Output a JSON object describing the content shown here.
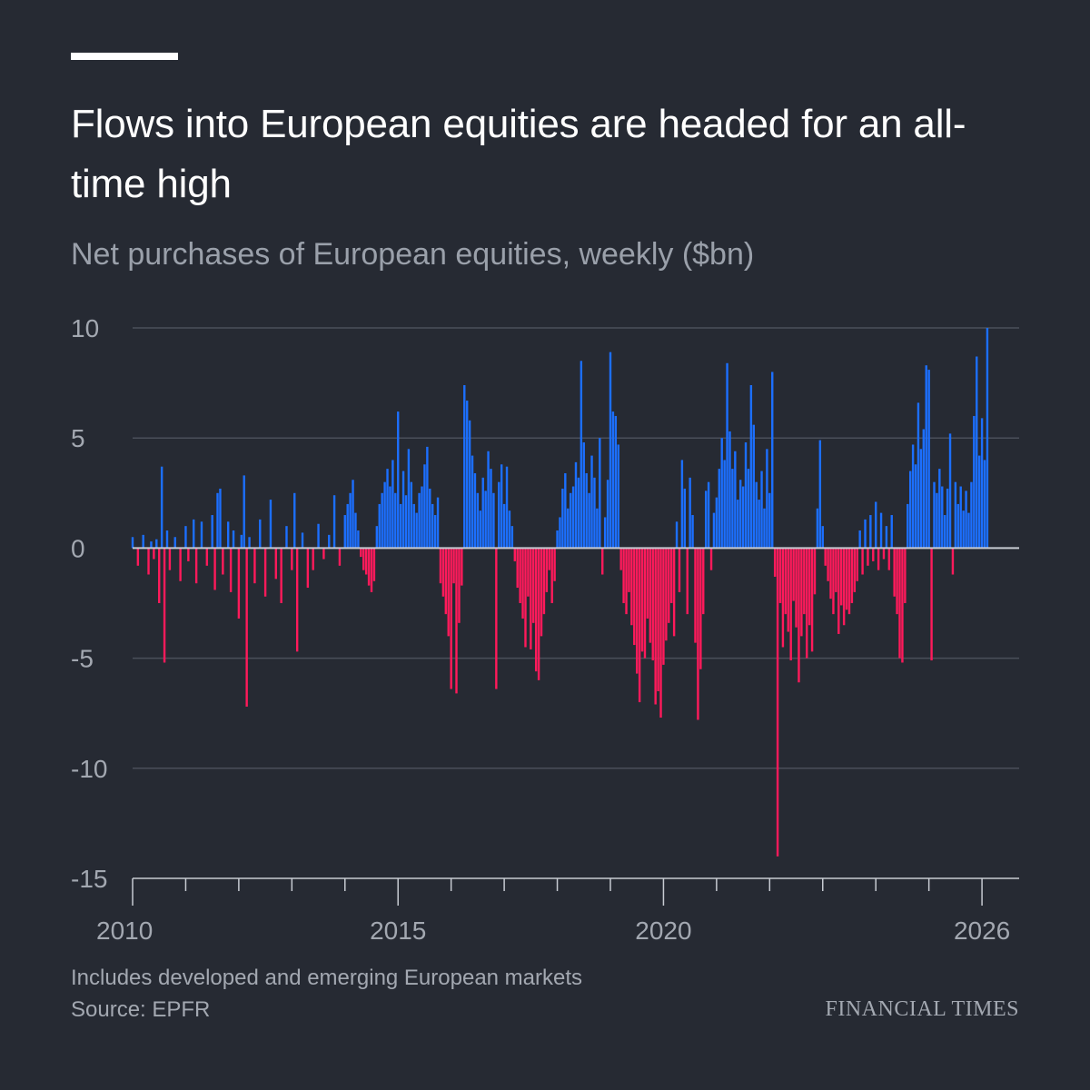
{
  "header": {
    "title": "Flows into European equities are headed for an all-time high",
    "subtitle": "Net purchases of European equities, weekly ($bn)"
  },
  "footer": {
    "note": "Includes developed and emerging European markets",
    "source": "Source: EPFR",
    "brand": "FINANCIAL TIMES"
  },
  "colors": {
    "background": "#262a33",
    "positive": "#1c6fff",
    "negative": "#ff1a5b",
    "gridline": "#4a4f5a",
    "text_muted": "#a3a8b1"
  },
  "chart_data": {
    "type": "bar",
    "title": "Flows into European equities are headed for an all-time high",
    "subtitle": "Net purchases of European equities, weekly ($bn)",
    "xlabel": "",
    "ylabel": "",
    "ylim": [
      -15,
      10
    ],
    "xlim": [
      2010,
      2026.7
    ],
    "y_ticks": [
      10,
      5,
      0,
      -5,
      -10,
      -15
    ],
    "x_tick_labels": [
      "2010",
      "2015",
      "2020",
      "2026"
    ],
    "x_tick_values": [
      2010,
      2015,
      2020,
      2026
    ],
    "x_minor_ticks": [
      2011,
      2012,
      2013,
      2014,
      2016,
      2017,
      2018,
      2019,
      2021,
      2022,
      2023,
      2024,
      2025
    ],
    "grid": true,
    "series": [
      {
        "x_unit": "year (weekly observations)",
        "points": [
          [
            2010.0,
            0.5
          ],
          [
            2010.1,
            -0.8
          ],
          [
            2010.2,
            0.6
          ],
          [
            2010.3,
            -1.2
          ],
          [
            2010.35,
            0.3
          ],
          [
            2010.4,
            -0.5
          ],
          [
            2010.45,
            0.4
          ],
          [
            2010.5,
            -2.5
          ],
          [
            2010.55,
            3.7
          ],
          [
            2010.6,
            -5.2
          ],
          [
            2010.65,
            0.8
          ],
          [
            2010.7,
            -1.0
          ],
          [
            2010.8,
            0.5
          ],
          [
            2010.9,
            -1.5
          ],
          [
            2011.0,
            1.0
          ],
          [
            2011.05,
            -0.6
          ],
          [
            2011.15,
            1.3
          ],
          [
            2011.2,
            -1.6
          ],
          [
            2011.3,
            1.2
          ],
          [
            2011.4,
            -0.8
          ],
          [
            2011.5,
            1.5
          ],
          [
            2011.55,
            -1.9
          ],
          [
            2011.6,
            2.5
          ],
          [
            2011.65,
            2.7
          ],
          [
            2011.7,
            -1.2
          ],
          [
            2011.8,
            1.2
          ],
          [
            2011.85,
            -2.0
          ],
          [
            2011.9,
            0.8
          ],
          [
            2012.0,
            -3.2
          ],
          [
            2012.05,
            0.6
          ],
          [
            2012.1,
            3.3
          ],
          [
            2012.15,
            -7.2
          ],
          [
            2012.2,
            0.5
          ],
          [
            2012.3,
            -1.6
          ],
          [
            2012.4,
            1.3
          ],
          [
            2012.5,
            -2.2
          ],
          [
            2012.6,
            2.2
          ],
          [
            2012.7,
            -1.4
          ],
          [
            2012.8,
            -2.5
          ],
          [
            2012.9,
            1.0
          ],
          [
            2013.0,
            -1.0
          ],
          [
            2013.05,
            2.5
          ],
          [
            2013.1,
            -4.7
          ],
          [
            2013.2,
            0.7
          ],
          [
            2013.3,
            -1.8
          ],
          [
            2013.4,
            -1.0
          ],
          [
            2013.5,
            1.1
          ],
          [
            2013.6,
            -0.5
          ],
          [
            2013.7,
            0.6
          ],
          [
            2013.8,
            2.4
          ],
          [
            2013.9,
            -0.8
          ],
          [
            2014.0,
            1.5
          ],
          [
            2014.05,
            2.0
          ],
          [
            2014.1,
            2.5
          ],
          [
            2014.15,
            3.1
          ],
          [
            2014.2,
            1.6
          ],
          [
            2014.25,
            0.8
          ],
          [
            2014.3,
            -0.4
          ],
          [
            2014.35,
            -1.0
          ],
          [
            2014.4,
            -1.2
          ],
          [
            2014.45,
            -1.7
          ],
          [
            2014.5,
            -2.0
          ],
          [
            2014.55,
            -1.5
          ],
          [
            2014.6,
            1.0
          ],
          [
            2014.65,
            2.0
          ],
          [
            2014.7,
            2.5
          ],
          [
            2014.75,
            3.0
          ],
          [
            2014.8,
            3.6
          ],
          [
            2014.85,
            2.8
          ],
          [
            2014.9,
            4.0
          ],
          [
            2014.95,
            2.5
          ],
          [
            2015.0,
            6.2
          ],
          [
            2015.05,
            2.0
          ],
          [
            2015.1,
            3.5
          ],
          [
            2015.15,
            2.4
          ],
          [
            2015.2,
            4.5
          ],
          [
            2015.25,
            3.0
          ],
          [
            2015.3,
            2.0
          ],
          [
            2015.35,
            1.6
          ],
          [
            2015.4,
            2.5
          ],
          [
            2015.45,
            2.8
          ],
          [
            2015.5,
            3.8
          ],
          [
            2015.55,
            4.6
          ],
          [
            2015.6,
            2.7
          ],
          [
            2015.65,
            2.0
          ],
          [
            2015.7,
            1.5
          ],
          [
            2015.75,
            2.3
          ],
          [
            2015.8,
            -1.6
          ],
          [
            2015.85,
            -2.2
          ],
          [
            2015.9,
            -3.0
          ],
          [
            2015.95,
            -4.0
          ],
          [
            2016.0,
            -6.4
          ],
          [
            2016.05,
            -1.6
          ],
          [
            2016.1,
            -6.6
          ],
          [
            2016.15,
            -3.4
          ],
          [
            2016.2,
            -1.7
          ],
          [
            2016.25,
            7.4
          ],
          [
            2016.3,
            6.7
          ],
          [
            2016.35,
            5.8
          ],
          [
            2016.4,
            4.2
          ],
          [
            2016.45,
            3.4
          ],
          [
            2016.5,
            2.5
          ],
          [
            2016.55,
            1.7
          ],
          [
            2016.6,
            3.2
          ],
          [
            2016.65,
            2.6
          ],
          [
            2016.7,
            4.4
          ],
          [
            2016.75,
            3.6
          ],
          [
            2016.8,
            2.5
          ],
          [
            2016.85,
            -6.4
          ],
          [
            2016.9,
            3.0
          ],
          [
            2016.95,
            3.8
          ],
          [
            2017.0,
            2.0
          ],
          [
            2017.05,
            3.7
          ],
          [
            2017.1,
            1.7
          ],
          [
            2017.15,
            1.0
          ],
          [
            2017.2,
            -0.6
          ],
          [
            2017.25,
            -1.8
          ],
          [
            2017.3,
            -2.5
          ],
          [
            2017.35,
            -3.2
          ],
          [
            2017.4,
            -4.5
          ],
          [
            2017.45,
            -2.2
          ],
          [
            2017.5,
            -4.6
          ],
          [
            2017.55,
            -3.4
          ],
          [
            2017.6,
            -5.6
          ],
          [
            2017.65,
            -6.0
          ],
          [
            2017.7,
            -4.0
          ],
          [
            2017.75,
            -3.0
          ],
          [
            2017.8,
            -2.0
          ],
          [
            2017.85,
            -1.0
          ],
          [
            2017.9,
            -2.5
          ],
          [
            2017.95,
            -1.5
          ],
          [
            2018.0,
            0.8
          ],
          [
            2018.05,
            1.4
          ],
          [
            2018.1,
            2.7
          ],
          [
            2018.15,
            3.4
          ],
          [
            2018.2,
            1.8
          ],
          [
            2018.25,
            2.5
          ],
          [
            2018.3,
            2.8
          ],
          [
            2018.35,
            3.9
          ],
          [
            2018.4,
            3.2
          ],
          [
            2018.45,
            8.5
          ],
          [
            2018.5,
            4.8
          ],
          [
            2018.55,
            3.4
          ],
          [
            2018.6,
            2.5
          ],
          [
            2018.65,
            4.2
          ],
          [
            2018.7,
            3.2
          ],
          [
            2018.75,
            1.8
          ],
          [
            2018.8,
            5.0
          ],
          [
            2018.85,
            -1.2
          ],
          [
            2018.9,
            1.4
          ],
          [
            2018.95,
            3.1
          ],
          [
            2019.0,
            8.9
          ],
          [
            2019.05,
            6.2
          ],
          [
            2019.1,
            6.0
          ],
          [
            2019.15,
            4.7
          ],
          [
            2019.2,
            -1.0
          ],
          [
            2019.25,
            -2.5
          ],
          [
            2019.3,
            -3.0
          ],
          [
            2019.35,
            -2.0
          ],
          [
            2019.4,
            -3.5
          ],
          [
            2019.45,
            -4.4
          ],
          [
            2019.5,
            -5.7
          ],
          [
            2019.55,
            -7.0
          ],
          [
            2019.6,
            -4.7
          ],
          [
            2019.65,
            -5.0
          ],
          [
            2019.7,
            -3.2
          ],
          [
            2019.75,
            -4.3
          ],
          [
            2019.8,
            -5.1
          ],
          [
            2019.85,
            -7.1
          ],
          [
            2019.9,
            -6.5
          ],
          [
            2019.95,
            -7.7
          ],
          [
            2020.0,
            -5.3
          ],
          [
            2020.05,
            -4.2
          ],
          [
            2020.1,
            -3.4
          ],
          [
            2020.15,
            -2.5
          ],
          [
            2020.2,
            -4.0
          ],
          [
            2020.25,
            1.2
          ],
          [
            2020.3,
            -2.0
          ],
          [
            2020.35,
            4.0
          ],
          [
            2020.4,
            2.7
          ],
          [
            2020.45,
            -3.0
          ],
          [
            2020.5,
            3.2
          ],
          [
            2020.55,
            1.5
          ],
          [
            2020.6,
            -4.3
          ],
          [
            2020.65,
            -7.8
          ],
          [
            2020.7,
            -5.5
          ],
          [
            2020.75,
            -3.0
          ],
          [
            2020.8,
            2.6
          ],
          [
            2020.85,
            3.0
          ],
          [
            2020.9,
            -1.0
          ],
          [
            2020.95,
            1.6
          ],
          [
            2021.0,
            2.3
          ],
          [
            2021.05,
            3.6
          ],
          [
            2021.1,
            5.0
          ],
          [
            2021.15,
            4.0
          ],
          [
            2021.2,
            8.4
          ],
          [
            2021.25,
            5.3
          ],
          [
            2021.3,
            3.6
          ],
          [
            2021.35,
            4.4
          ],
          [
            2021.4,
            2.2
          ],
          [
            2021.45,
            3.1
          ],
          [
            2021.5,
            2.8
          ],
          [
            2021.55,
            4.8
          ],
          [
            2021.6,
            3.6
          ],
          [
            2021.65,
            7.4
          ],
          [
            2021.7,
            5.6
          ],
          [
            2021.75,
            3.0
          ],
          [
            2021.8,
            2.2
          ],
          [
            2021.85,
            3.5
          ],
          [
            2021.9,
            1.8
          ],
          [
            2021.95,
            4.5
          ],
          [
            2022.0,
            2.5
          ],
          [
            2022.05,
            8.0
          ],
          [
            2022.1,
            -1.3
          ],
          [
            2022.15,
            -14.0
          ],
          [
            2022.2,
            -2.5
          ],
          [
            2022.25,
            -4.5
          ],
          [
            2022.3,
            -3.0
          ],
          [
            2022.35,
            -3.8
          ],
          [
            2022.4,
            -5.1
          ],
          [
            2022.45,
            -2.4
          ],
          [
            2022.5,
            -3.6
          ],
          [
            2022.55,
            -6.1
          ],
          [
            2022.6,
            -4.0
          ],
          [
            2022.65,
            -3.0
          ],
          [
            2022.7,
            -5.0
          ],
          [
            2022.75,
            -3.5
          ],
          [
            2022.8,
            -4.7
          ],
          [
            2022.85,
            -2.1
          ],
          [
            2022.9,
            1.8
          ],
          [
            2022.95,
            4.9
          ],
          [
            2023.0,
            1.0
          ],
          [
            2023.05,
            -0.8
          ],
          [
            2023.1,
            -1.5
          ],
          [
            2023.15,
            -2.3
          ],
          [
            2023.2,
            -3.0
          ],
          [
            2023.25,
            -2.0
          ],
          [
            2023.3,
            -3.9
          ],
          [
            2023.35,
            -2.6
          ],
          [
            2023.4,
            -3.5
          ],
          [
            2023.45,
            -2.8
          ],
          [
            2023.5,
            -3.0
          ],
          [
            2023.55,
            -2.5
          ],
          [
            2023.6,
            -2.0
          ],
          [
            2023.65,
            -1.5
          ],
          [
            2023.7,
            0.8
          ],
          [
            2023.75,
            -1.2
          ],
          [
            2023.8,
            1.3
          ],
          [
            2023.85,
            -0.8
          ],
          [
            2023.9,
            1.5
          ],
          [
            2023.95,
            -0.6
          ],
          [
            2024.0,
            2.1
          ],
          [
            2024.05,
            -1.0
          ],
          [
            2024.1,
            1.6
          ],
          [
            2024.15,
            -0.5
          ],
          [
            2024.2,
            1.0
          ],
          [
            2024.25,
            -1.0
          ],
          [
            2024.3,
            1.5
          ],
          [
            2024.35,
            -2.2
          ],
          [
            2024.4,
            -3.0
          ],
          [
            2024.45,
            -5.0
          ],
          [
            2024.5,
            -5.2
          ],
          [
            2024.55,
            -2.5
          ],
          [
            2024.6,
            2.0
          ],
          [
            2024.65,
            3.5
          ],
          [
            2024.7,
            4.7
          ],
          [
            2024.75,
            3.8
          ],
          [
            2024.8,
            6.6
          ],
          [
            2024.85,
            4.5
          ],
          [
            2024.9,
            5.4
          ],
          [
            2024.95,
            8.3
          ],
          [
            2025.0,
            8.1
          ],
          [
            2025.05,
            -5.1
          ],
          [
            2025.1,
            3.0
          ],
          [
            2025.15,
            2.5
          ],
          [
            2025.2,
            3.6
          ],
          [
            2025.25,
            2.8
          ],
          [
            2025.3,
            1.5
          ],
          [
            2025.35,
            2.7
          ],
          [
            2025.4,
            5.2
          ],
          [
            2025.45,
            -1.2
          ],
          [
            2025.5,
            3.0
          ],
          [
            2025.55,
            2.0
          ],
          [
            2025.6,
            2.8
          ],
          [
            2025.65,
            1.7
          ],
          [
            2025.7,
            2.6
          ],
          [
            2025.75,
            1.6
          ],
          [
            2025.8,
            3.0
          ],
          [
            2025.85,
            6.0
          ],
          [
            2025.9,
            8.7
          ],
          [
            2025.95,
            4.2
          ],
          [
            2026.0,
            5.9
          ],
          [
            2026.05,
            4.0
          ],
          [
            2026.1,
            10.0
          ]
        ]
      }
    ]
  }
}
